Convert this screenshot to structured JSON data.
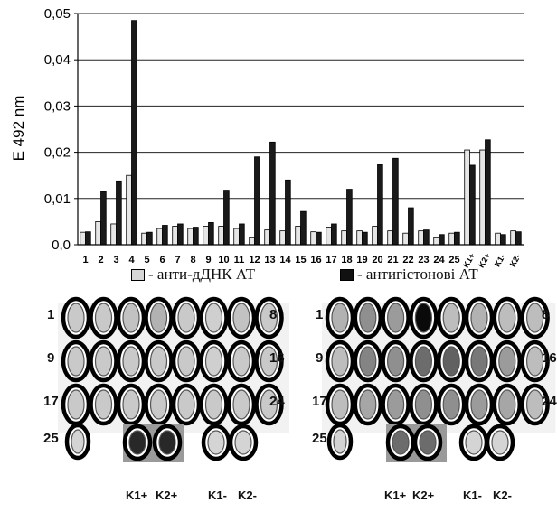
{
  "chart_data": {
    "type": "bar",
    "ylabel": "E 492 nm",
    "ylim": [
      0,
      0.05
    ],
    "yticks": [
      "0,0",
      "0,01",
      "0,02",
      "0,03",
      "0,04",
      "0,05"
    ],
    "categories": [
      "1",
      "2",
      "3",
      "4",
      "5",
      "6",
      "7",
      "8",
      "9",
      "10",
      "11",
      "12",
      "13",
      "14",
      "15",
      "16",
      "17",
      "18",
      "19",
      "20",
      "21",
      "22",
      "23",
      "24",
      "25",
      "K1+",
      "K2+",
      "K1-",
      "K2-"
    ],
    "series": [
      {
        "name": "анти-дДНК АТ",
        "color": "#e6e6e6",
        "values": [
          0.0027,
          0.005,
          0.0045,
          0.015,
          0.0025,
          0.0035,
          0.004,
          0.0035,
          0.004,
          0.004,
          0.0035,
          0.0015,
          0.0032,
          0.003,
          0.004,
          0.0028,
          0.0038,
          0.003,
          0.003,
          0.004,
          0.003,
          0.0025,
          0.003,
          0.0015,
          0.0025,
          0.0205,
          0.0205,
          0.0025,
          0.003
        ]
      },
      {
        "name": "антигістонові АТ",
        "color": "#1a1a1a",
        "values": [
          0.0028,
          0.0115,
          0.0138,
          0.0485,
          0.0027,
          0.0042,
          0.0045,
          0.0038,
          0.0048,
          0.0118,
          0.0045,
          0.019,
          0.0222,
          0.014,
          0.0072,
          0.0027,
          0.0045,
          0.012,
          0.0027,
          0.0173,
          0.0187,
          0.008,
          0.0032,
          0.0022,
          0.0027,
          0.0172,
          0.0227,
          0.0022,
          0.0028
        ]
      }
    ]
  },
  "legend": {
    "item1": "- анти-дДНК АТ",
    "item2": "- антигістонові АТ"
  },
  "plates": [
    {
      "row_labels": [
        "1",
        "9",
        "17",
        "25"
      ],
      "end_labels": [
        "8",
        "16",
        "24"
      ],
      "controls": [
        "K1+",
        "K2+",
        "K1-",
        "K2-"
      ],
      "well_shades": [
        [
          0.15,
          0.15,
          0.18,
          0.25,
          0.15,
          0.12,
          0.18,
          0.15
        ],
        [
          0.15,
          0.15,
          0.15,
          0.15,
          0.15,
          0.12,
          0.15,
          0.15
        ],
        [
          0.15,
          0.15,
          0.15,
          0.15,
          0.15,
          0.15,
          0.15,
          0.15
        ]
      ],
      "sample25_shade": 0.1,
      "control_shades": [
        0.85,
        0.85,
        0.1,
        0.1
      ]
    },
    {
      "row_labels": [
        "1",
        "9",
        "17",
        "25"
      ],
      "end_labels": [
        "8",
        "16",
        "24"
      ],
      "controls": [
        "K1+",
        "K2+",
        "K1-",
        "K2-"
      ],
      "well_shades": [
        [
          0.25,
          0.4,
          0.35,
          0.98,
          0.2,
          0.25,
          0.2,
          0.2
        ],
        [
          0.2,
          0.45,
          0.4,
          0.55,
          0.6,
          0.5,
          0.35,
          0.2
        ],
        [
          0.2,
          0.3,
          0.35,
          0.4,
          0.4,
          0.35,
          0.3,
          0.2
        ]
      ],
      "sample25_shade": 0.1,
      "control_shades": [
        0.55,
        0.55,
        0.1,
        0.1
      ]
    }
  ]
}
